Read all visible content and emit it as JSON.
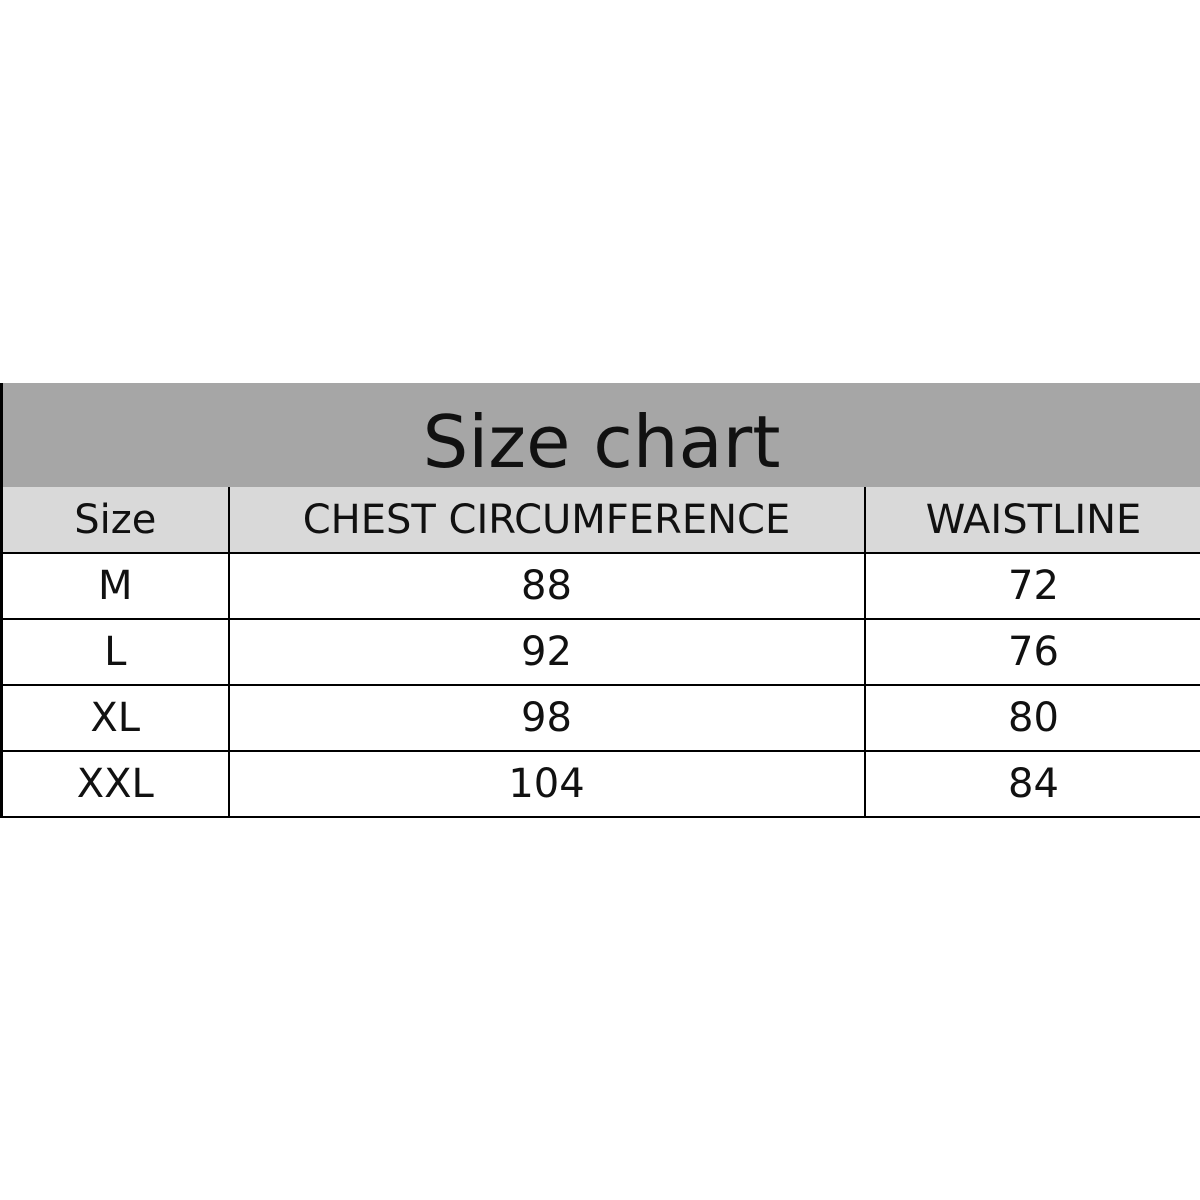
{
  "title": "Size chart",
  "headers": [
    "Size",
    "CHEST CIRCUMFERENCE",
    "WAISTLINE"
  ],
  "rows": [
    [
      "M",
      "88",
      "72"
    ],
    [
      "L",
      "92",
      "76"
    ],
    [
      "XL",
      "98",
      "80"
    ],
    [
      "XXL",
      "104",
      "84"
    ]
  ],
  "colors": {
    "title_bg": "#a6a6a6",
    "header_bg": "#d9d9d9"
  }
}
